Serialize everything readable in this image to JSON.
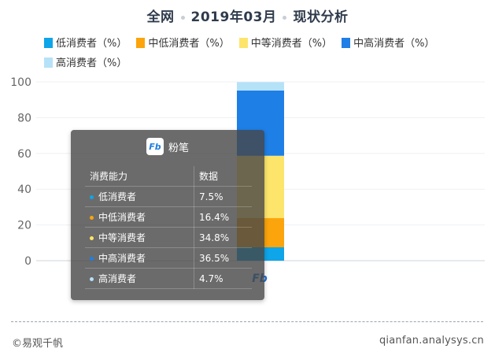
{
  "header": {
    "scope": "全网",
    "period": "2019年03月",
    "subject": "现状分析"
  },
  "chart_data": {
    "type": "bar",
    "stacked": true,
    "categories": [
      "粉笔"
    ],
    "series": [
      {
        "name": "低消费者（%）",
        "color": "#0ea5e9",
        "values": [
          7.5
        ]
      },
      {
        "name": "中低消费者（%）",
        "color": "#fba40b",
        "values": [
          16.4
        ]
      },
      {
        "name": "中等消费者（%）",
        "color": "#fde56b",
        "values": [
          34.8
        ]
      },
      {
        "name": "中高消费者（%）",
        "color": "#1e7fe6",
        "values": [
          36.5
        ]
      },
      {
        "name": "高消费者（%）",
        "color": "#b6e2f8",
        "values": [
          4.7
        ]
      }
    ],
    "ylim": [
      0,
      100
    ],
    "yticks": [
      0,
      20,
      40,
      60,
      80,
      100
    ],
    "grid": true,
    "legend_position": "top-left"
  },
  "tooltip": {
    "app_name": "粉笔",
    "logo_text": "Fb",
    "col_header_1": "消费能力",
    "col_header_2": "数据",
    "rows": [
      {
        "label": "低消费者",
        "value": "7.5%",
        "color": "#0ea5e9"
      },
      {
        "label": "中低消费者",
        "value": "16.4%",
        "color": "#fba40b"
      },
      {
        "label": "中等消费者",
        "value": "34.8%",
        "color": "#fde56b"
      },
      {
        "label": "中高消费者",
        "value": "36.5%",
        "color": "#1e7fe6"
      },
      {
        "label": "高消费者",
        "value": "4.7%",
        "color": "#b6e2f8"
      }
    ]
  },
  "footer": {
    "copyright": "©易观千帆",
    "site": "qianfan.analysys.cn"
  }
}
